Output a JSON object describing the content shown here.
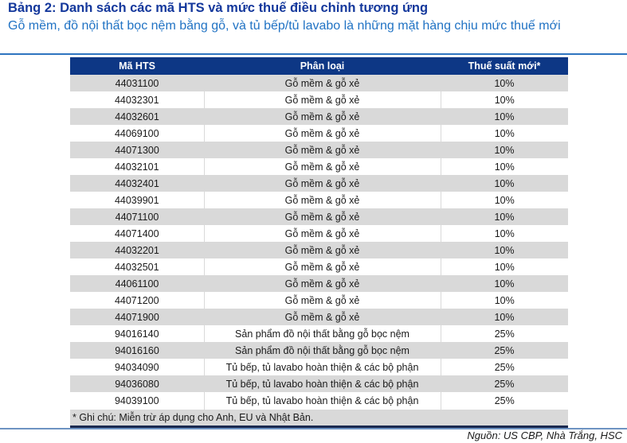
{
  "page": {
    "title": "Bảng 2: Danh sách các mã HTS và mức thuế điều chỉnh tương ứng",
    "subtitle": "Gỗ mềm, đồ nội thất bọc nệm bằng gỗ, và tủ bếp/tủ lavabo là những mặt hàng chịu mức thuế mới",
    "source": "Nguồn: US CBP, Nhà Trắng, HSC"
  },
  "colors": {
    "title_text": "#14389c",
    "subtitle_text": "#2173c4",
    "header_bg": "#0d3785",
    "header_text": "#ffffff",
    "row_alt_bg": "#d9d9d9",
    "row_bg": "#ffffff",
    "rule_top": "#2e74c0",
    "rule_bottom": "#6d93c2",
    "table_bottom_border": "#1a2950"
  },
  "table": {
    "columns": [
      "Mã HTS",
      "Phân loại",
      "Thuế suất mới*"
    ],
    "rows": [
      [
        "44031100",
        "Gỗ mềm & gỗ xẻ",
        "10%"
      ],
      [
        "44032301",
        "Gỗ mềm & gỗ xẻ",
        "10%"
      ],
      [
        "44032601",
        "Gỗ mềm & gỗ xẻ",
        "10%"
      ],
      [
        "44069100",
        "Gỗ mềm & gỗ xẻ",
        "10%"
      ],
      [
        "44071300",
        "Gỗ mềm & gỗ xẻ",
        "10%"
      ],
      [
        "44032101",
        "Gỗ mềm & gỗ xẻ",
        "10%"
      ],
      [
        "44032401",
        "Gỗ mềm & gỗ xẻ",
        "10%"
      ],
      [
        "44039901",
        "Gỗ mềm & gỗ xẻ",
        "10%"
      ],
      [
        "44071100",
        "Gỗ mềm & gỗ xẻ",
        "10%"
      ],
      [
        "44071400",
        "Gỗ mềm & gỗ xẻ",
        "10%"
      ],
      [
        "44032201",
        "Gỗ mềm & gỗ xẻ",
        "10%"
      ],
      [
        "44032501",
        "Gỗ mềm & gỗ xẻ",
        "10%"
      ],
      [
        "44061100",
        "Gỗ mềm & gỗ xẻ",
        "10%"
      ],
      [
        "44071200",
        "Gỗ mềm & gỗ xẻ",
        "10%"
      ],
      [
        "44071900",
        "Gỗ mềm & gỗ xẻ",
        "10%"
      ],
      [
        "94016140",
        "Sản phẩm đồ nội thất bằng gỗ bọc nệm",
        "25%"
      ],
      [
        "94016160",
        "Sản phẩm đồ nội thất bằng gỗ bọc nệm",
        "25%"
      ],
      [
        "94034090",
        "Tủ bếp, tủ lavabo hoàn thiện & các bộ phận",
        "25%"
      ],
      [
        "94036080",
        "Tủ bếp, tủ lavabo hoàn thiện & các bộ phận",
        "25%"
      ],
      [
        "94039100",
        "Tủ bếp, tủ lavabo hoàn thiện & các bộ phận",
        "25%"
      ]
    ],
    "footnote": "* Ghi chú: Miễn trừ áp dụng cho Anh, EU và Nhật Bản."
  },
  "chart_data": {
    "type": "table",
    "title": "Bảng 2: Danh sách các mã HTS và mức thuế điều chỉnh tương ứng",
    "columns": [
      "Mã HTS",
      "Phân loại",
      "Thuế suất mới*"
    ],
    "rows": [
      [
        "44031100",
        "Gỗ mềm & gỗ xẻ",
        "10%"
      ],
      [
        "44032301",
        "Gỗ mềm & gỗ xẻ",
        "10%"
      ],
      [
        "44032601",
        "Gỗ mềm & gỗ xẻ",
        "10%"
      ],
      [
        "44069100",
        "Gỗ mềm & gỗ xẻ",
        "10%"
      ],
      [
        "44071300",
        "Gỗ mềm & gỗ xẻ",
        "10%"
      ],
      [
        "44032101",
        "Gỗ mềm & gỗ xẻ",
        "10%"
      ],
      [
        "44032401",
        "Gỗ mềm & gỗ xẻ",
        "10%"
      ],
      [
        "44039901",
        "Gỗ mềm & gỗ xẻ",
        "10%"
      ],
      [
        "44071100",
        "Gỗ mềm & gỗ xẻ",
        "10%"
      ],
      [
        "44071400",
        "Gỗ mềm & gỗ xẻ",
        "10%"
      ],
      [
        "44032201",
        "Gỗ mềm & gỗ xẻ",
        "10%"
      ],
      [
        "44032501",
        "Gỗ mềm & gỗ xẻ",
        "10%"
      ],
      [
        "44061100",
        "Gỗ mềm & gỗ xẻ",
        "10%"
      ],
      [
        "44071200",
        "Gỗ mềm & gỗ xẻ",
        "10%"
      ],
      [
        "44071900",
        "Gỗ mềm & gỗ xẻ",
        "10%"
      ],
      [
        "94016140",
        "Sản phẩm đồ nội thất bằng gỗ bọc nệm",
        "25%"
      ],
      [
        "94016160",
        "Sản phẩm đồ nội thất bằng gỗ bọc nệm",
        "25%"
      ],
      [
        "94034090",
        "Tủ bếp, tủ lavabo hoàn thiện & các bộ phận",
        "25%"
      ],
      [
        "94036080",
        "Tủ bếp, tủ lavabo hoàn thiện & các bộ phận",
        "25%"
      ],
      [
        "94039100",
        "Tủ bếp, tủ lavabo hoàn thiện & các bộ phận",
        "25%"
      ]
    ]
  }
}
